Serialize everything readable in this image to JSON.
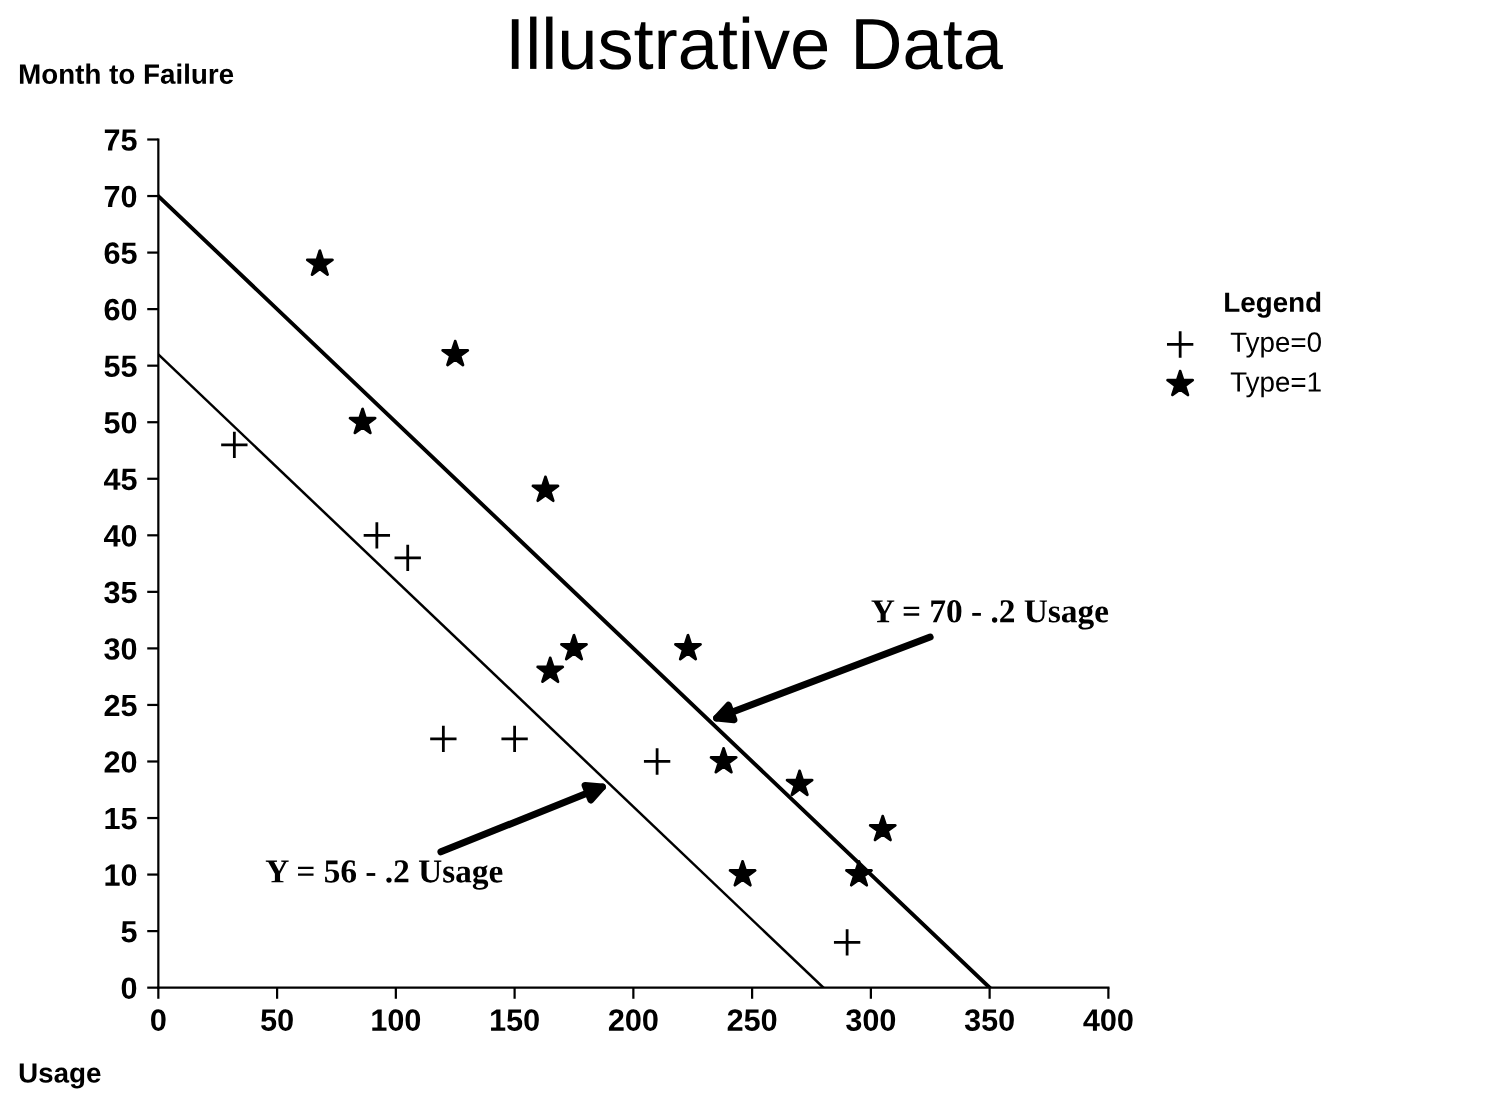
{
  "chart_data": {
    "type": "scatter",
    "title": "Illustrative Data",
    "xlabel": "Usage",
    "ylabel": "Month to Failure",
    "legend_title": "Legend",
    "legend": "right",
    "xlim": [
      0,
      400
    ],
    "xticks": [
      0,
      50,
      100,
      150,
      200,
      250,
      300,
      350,
      400
    ],
    "ylim": [
      0,
      75
    ],
    "yticks": [
      0,
      5,
      10,
      15,
      20,
      25,
      30,
      35,
      40,
      45,
      50,
      55,
      60,
      65,
      70,
      75
    ],
    "grid": false,
    "series": [
      {
        "name": "Type=0",
        "marker": "cross",
        "color": "#000000",
        "x": [
          32,
          92,
          105,
          120,
          150,
          210,
          290
        ],
        "values": [
          48,
          40,
          38,
          22,
          22,
          20,
          4
        ]
      },
      {
        "name": "Type=1",
        "marker": "star",
        "color": "#000000",
        "x": [
          68,
          86,
          125,
          163,
          165,
          175,
          223,
          238,
          246,
          270,
          295,
          305
        ],
        "values": [
          64,
          50,
          56,
          44,
          28,
          30,
          30,
          20,
          10,
          18,
          10,
          14
        ]
      },
      {
        "type": "line",
        "marker": "none",
        "line_style": "solid",
        "color": "#000000",
        "x": [
          0,
          350
        ],
        "values": [
          70,
          0
        ]
      },
      {
        "type": "line",
        "marker": "none",
        "line_style": "solid",
        "color": "#000000",
        "x": [
          0,
          280
        ],
        "values": [
          56,
          0
        ]
      }
    ],
    "annotations": [
      {
        "text": "Y = 70 - .2 Usage",
        "x": 232,
        "y": 23.6
      },
      {
        "text": "Y = 56 - .2 Usage",
        "x": 190,
        "y": 18
      }
    ]
  }
}
